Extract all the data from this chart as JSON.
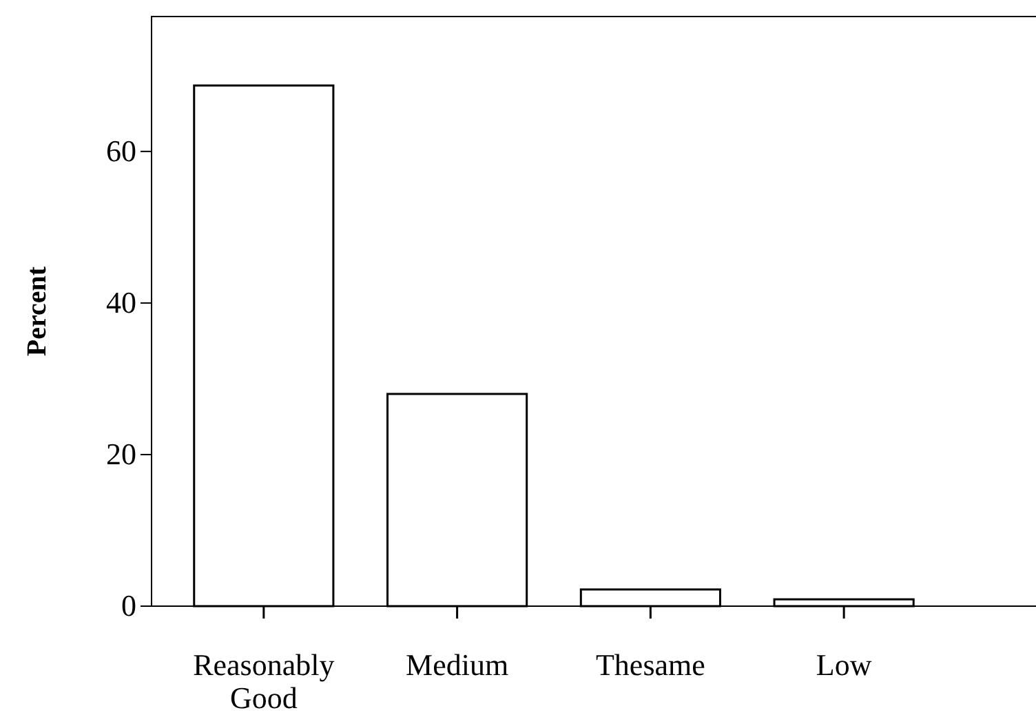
{
  "chart_data": {
    "type": "bar",
    "ylabel": "Percent",
    "categories": [
      "Reasonably Good",
      "Medium",
      "Thesame",
      "Low"
    ],
    "values": [
      68.7,
      28.0,
      2.2,
      0.9
    ],
    "color": "#ffffff",
    "ylim": [
      0,
      77.8
    ],
    "yticks": [
      0,
      20,
      40,
      60
    ],
    "grid": false
  }
}
